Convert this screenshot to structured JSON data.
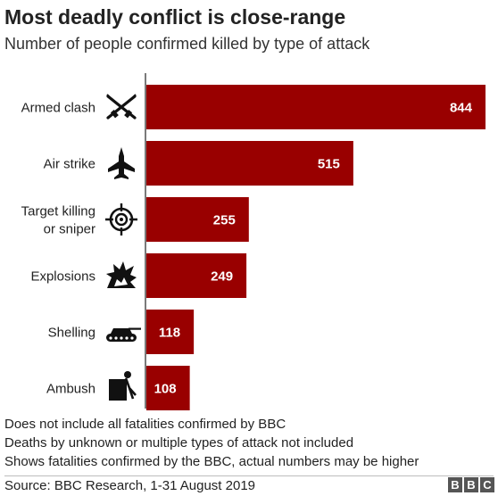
{
  "title": "Most deadly conflict is close-range",
  "subtitle": "Number of people confirmed killed by type of attack",
  "chart_data": {
    "type": "bar",
    "orientation": "horizontal",
    "title": "Most deadly conflict is close-range",
    "subtitle": "Number of people confirmed killed by type of attack",
    "categories": [
      {
        "lines": [
          "Armed clash"
        ],
        "icon": "crossed-rifles-icon"
      },
      {
        "lines": [
          "Air strike"
        ],
        "icon": "fighter-jet-icon"
      },
      {
        "lines": [
          "Target killing",
          "or sniper"
        ],
        "icon": "crosshair-icon"
      },
      {
        "lines": [
          "Explosions"
        ],
        "icon": "explosion-icon"
      },
      {
        "lines": [
          "Shelling"
        ],
        "icon": "tank-icon"
      },
      {
        "lines": [
          "Ambush"
        ],
        "icon": "ambush-icon"
      }
    ],
    "values": [
      844,
      515,
      255,
      249,
      118,
      108
    ],
    "value_labels": [
      "844",
      "515",
      "255",
      "249",
      "118",
      "108"
    ],
    "xlim": [
      0,
      844
    ],
    "grid": false,
    "bar_color": "#990000",
    "label_color": "#ffffff"
  },
  "notes": [
    "Does not include all fatalities confirmed by BBC",
    "Deaths by unknown or multiple types of attack not included",
    "Shows fatalities confirmed by the BBC, actual numbers may be higher"
  ],
  "source": "Source: BBC Research, 1-31 August 2019",
  "brand_letters": [
    "B",
    "B",
    "C"
  ]
}
